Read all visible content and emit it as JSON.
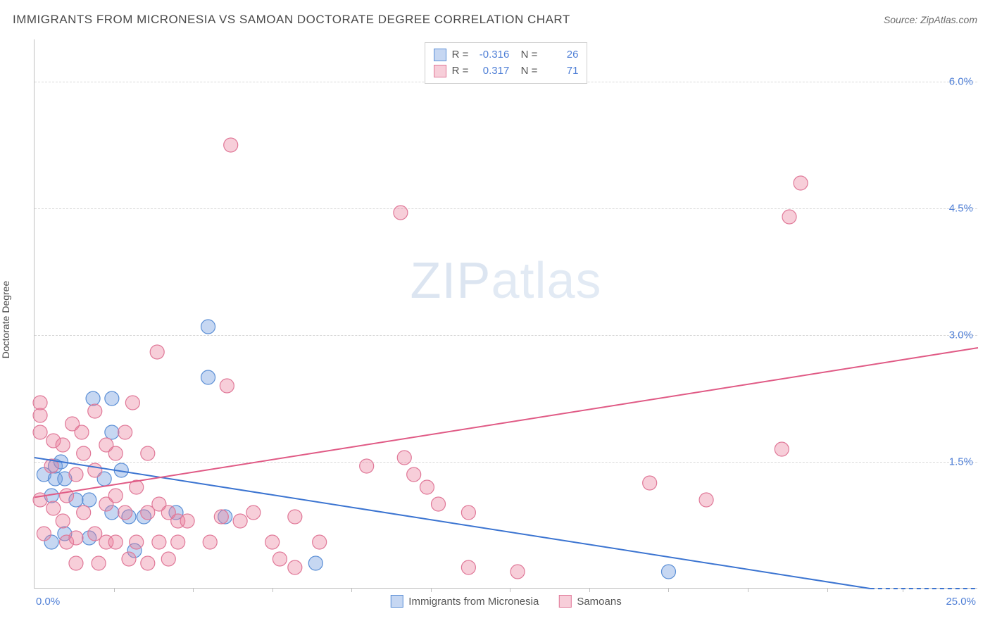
{
  "header": {
    "title": "IMMIGRANTS FROM MICRONESIA VS SAMOAN DOCTORATE DEGREE CORRELATION CHART",
    "source_label": "Source:",
    "source_value": "ZipAtlas.com"
  },
  "ylabel": "Doctorate Degree",
  "watermark": {
    "part1": "ZIP",
    "part2": "atlas"
  },
  "chart": {
    "type": "scatter",
    "xlim": [
      0,
      25
    ],
    "ylim": [
      0,
      6.5
    ],
    "x_axis_labels": {
      "left": "0.0%",
      "right": "25.0%"
    },
    "y_ticks": [
      1.5,
      3.0,
      4.5,
      6.0
    ],
    "y_tick_labels": [
      "1.5%",
      "3.0%",
      "4.5%",
      "6.0%"
    ],
    "x_tick_positions": [
      2.1,
      4.2,
      6.3,
      8.4,
      10.5,
      12.6,
      14.7,
      16.8,
      18.9,
      21.0,
      23.0
    ],
    "grid_color": "#d8d8d8",
    "axis_color": "#bfbfbf",
    "background_color": "#ffffff",
    "label_color": "#4f7fd6",
    "label_fontsize": 15,
    "title_color": "#4a4a4a",
    "title_fontsize": 17,
    "marker_radius": 10,
    "marker_stroke_width": 1.2,
    "trend_line_width": 2,
    "series": [
      {
        "name": "Immigrants from Micronesia",
        "fill_color": "rgba(120,160,225,0.42)",
        "stroke_color": "#5b8fd6",
        "R": "-0.316",
        "N": "26",
        "trend": {
          "x1": 0,
          "y1": 1.55,
          "x2": 25,
          "y2": -0.2,
          "color": "#3b74d1"
        },
        "points": [
          [
            0.25,
            1.35
          ],
          [
            0.55,
            1.3
          ],
          [
            0.55,
            1.45
          ],
          [
            0.8,
            1.3
          ],
          [
            0.7,
            1.5
          ],
          [
            0.45,
            1.1
          ],
          [
            0.45,
            0.55
          ],
          [
            1.1,
            1.05
          ],
          [
            0.8,
            0.65
          ],
          [
            1.45,
            1.05
          ],
          [
            1.45,
            0.6
          ],
          [
            1.55,
            2.25
          ],
          [
            2.05,
            2.25
          ],
          [
            2.05,
            1.85
          ],
          [
            1.85,
            1.3
          ],
          [
            2.3,
            1.4
          ],
          [
            2.05,
            0.9
          ],
          [
            2.5,
            0.85
          ],
          [
            2.9,
            0.85
          ],
          [
            2.65,
            0.45
          ],
          [
            3.75,
            0.9
          ],
          [
            4.6,
            3.1
          ],
          [
            4.6,
            2.5
          ],
          [
            5.05,
            0.85
          ],
          [
            7.45,
            0.3
          ],
          [
            16.8,
            0.2
          ]
        ]
      },
      {
        "name": "Samoans",
        "fill_color": "rgba(235,125,155,0.38)",
        "stroke_color": "#e07898",
        "R": "0.317",
        "N": "71",
        "trend": {
          "x1": 0,
          "y1": 1.08,
          "x2": 25,
          "y2": 2.85,
          "color": "#e05a85"
        },
        "points": [
          [
            0.15,
            2.05
          ],
          [
            0.15,
            2.2
          ],
          [
            0.15,
            1.85
          ],
          [
            0.15,
            1.05
          ],
          [
            0.25,
            0.65
          ],
          [
            0.5,
            1.75
          ],
          [
            0.5,
            0.95
          ],
          [
            0.75,
            1.7
          ],
          [
            0.75,
            0.8
          ],
          [
            0.85,
            1.1
          ],
          [
            0.85,
            0.55
          ],
          [
            1.0,
            1.95
          ],
          [
            1.1,
            1.35
          ],
          [
            1.1,
            0.6
          ],
          [
            1.1,
            0.3
          ],
          [
            1.3,
            0.9
          ],
          [
            1.3,
            1.6
          ],
          [
            1.6,
            2.1
          ],
          [
            1.6,
            1.4
          ],
          [
            1.6,
            0.65
          ],
          [
            1.7,
            0.3
          ],
          [
            1.9,
            1.7
          ],
          [
            1.9,
            1.0
          ],
          [
            1.9,
            0.55
          ],
          [
            2.15,
            1.6
          ],
          [
            2.15,
            1.1
          ],
          [
            2.15,
            0.55
          ],
          [
            2.4,
            1.85
          ],
          [
            2.4,
            0.9
          ],
          [
            2.5,
            0.35
          ],
          [
            2.7,
            1.2
          ],
          [
            2.7,
            0.55
          ],
          [
            3.0,
            1.6
          ],
          [
            3.0,
            0.9
          ],
          [
            3.0,
            0.3
          ],
          [
            3.3,
            1.0
          ],
          [
            3.3,
            0.55
          ],
          [
            3.55,
            0.9
          ],
          [
            3.55,
            0.35
          ],
          [
            3.8,
            0.8
          ],
          [
            3.8,
            0.55
          ],
          [
            4.05,
            0.8
          ],
          [
            2.6,
            2.2
          ],
          [
            3.25,
            2.8
          ],
          [
            4.65,
            0.55
          ],
          [
            4.95,
            0.85
          ],
          [
            5.1,
            2.4
          ],
          [
            5.2,
            5.25
          ],
          [
            5.45,
            0.8
          ],
          [
            5.8,
            0.9
          ],
          [
            6.3,
            0.55
          ],
          [
            6.5,
            0.35
          ],
          [
            6.9,
            0.85
          ],
          [
            6.9,
            0.25
          ],
          [
            7.55,
            0.55
          ],
          [
            8.8,
            1.45
          ],
          [
            9.7,
            4.45
          ],
          [
            9.8,
            1.55
          ],
          [
            10.05,
            1.35
          ],
          [
            10.4,
            1.2
          ],
          [
            10.7,
            1.0
          ],
          [
            11.5,
            0.9
          ],
          [
            11.5,
            0.25
          ],
          [
            12.8,
            0.2
          ],
          [
            16.3,
            1.25
          ],
          [
            17.8,
            1.05
          ],
          [
            19.8,
            1.65
          ],
          [
            20.3,
            4.8
          ],
          [
            20.0,
            4.4
          ],
          [
            1.25,
            1.85
          ],
          [
            0.45,
            1.45
          ]
        ]
      }
    ]
  },
  "legend_bottom": [
    {
      "label": "Immigrants from Micronesia",
      "fill": "rgba(120,160,225,0.42)",
      "stroke": "#5b8fd6"
    },
    {
      "label": "Samoans",
      "fill": "rgba(235,125,155,0.38)",
      "stroke": "#e07898"
    }
  ]
}
